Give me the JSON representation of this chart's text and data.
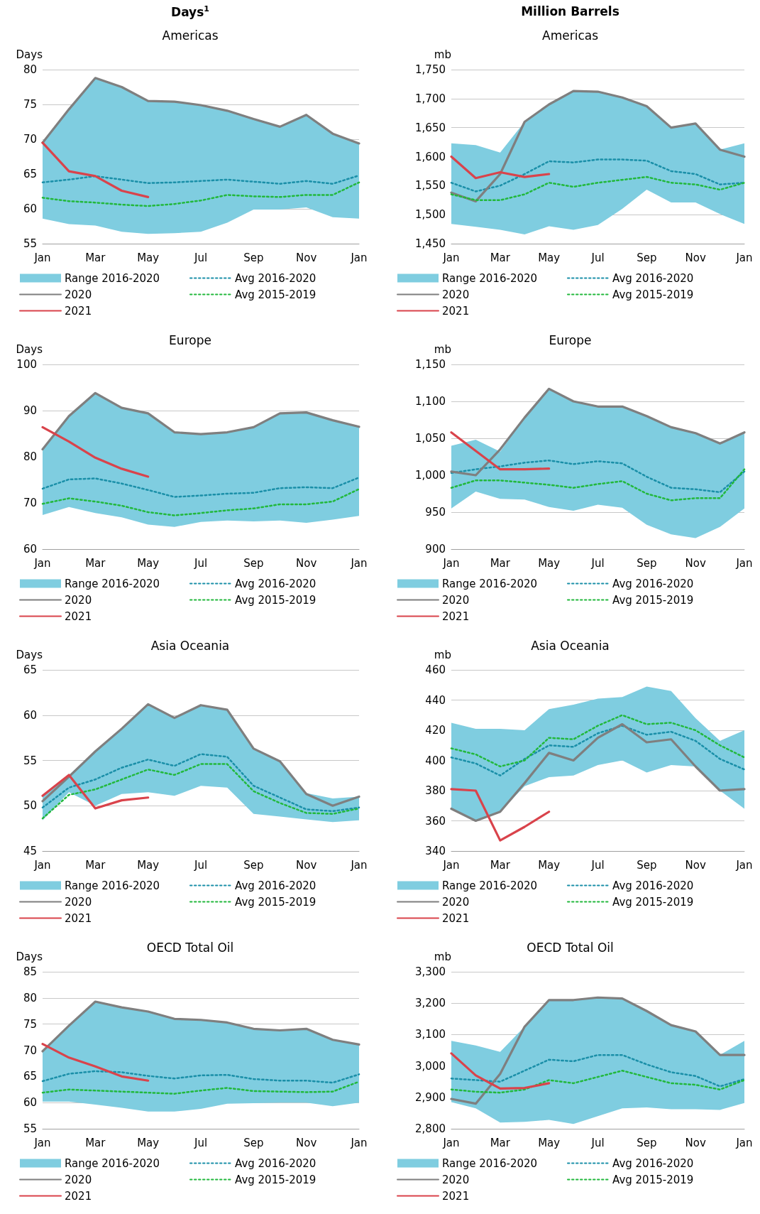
{
  "chart_data": [
    {
      "type": "line",
      "title": "Days$^{1}$",
      "subtitle": "Americas",
      "ylabel": "Days",
      "categories": [
        "Jan",
        null,
        "Mar",
        null,
        "May",
        null,
        "Jul",
        null,
        "Sep",
        null,
        "Nov",
        null,
        "Jan"
      ],
      "ylim": [
        55,
        80
      ],
      "yticks": [
        55,
        60,
        65,
        70,
        75,
        80
      ],
      "grid": "y",
      "legend": "bottom",
      "marker": "none",
      "series": [
        {
          "name": "Range 2016-2020",
          "type": "area",
          "color": "#7fcde0",
          "values": [
            null,
            null,
            null,
            null,
            null,
            null,
            null,
            null,
            null,
            null,
            null,
            null,
            null
          ],
          "upper": [
            69.5,
            74.5,
            78.8,
            77.5,
            75.5,
            75.4,
            74.9,
            74.2,
            73,
            71.8,
            73.5,
            70.8,
            69.5
          ],
          "lower": [
            58.6,
            57.8,
            57.6,
            56.7,
            56.4,
            56.5,
            56.7,
            58,
            59.9,
            59.9,
            60.2,
            58.8,
            58.6
          ]
        },
        {
          "name": "Avg 2016-2020",
          "color": "#1a8fa8",
          "line_style": "dotted",
          "values": [
            63.8,
            64.2,
            64.7,
            64.2,
            63.7,
            63.8,
            64,
            64.2,
            63.9,
            63.6,
            64,
            63.6,
            64.8
          ]
        },
        {
          "name": "2020",
          "color": "#7f7f7f",
          "line_style": "solid",
          "values": [
            69.5,
            74.3,
            78.8,
            77.5,
            75.5,
            75.4,
            74.9,
            74.1,
            72.9,
            71.8,
            73.5,
            70.8,
            69.4
          ]
        },
        {
          "name": "Avg 2015-2019",
          "color": "#22b83c",
          "line_style": "dotted",
          "values": [
            61.6,
            61.1,
            60.9,
            60.6,
            60.4,
            60.7,
            61.2,
            62,
            61.8,
            61.7,
            62,
            62,
            63.8
          ]
        },
        {
          "name": "2021",
          "color": "#d9434b",
          "line_style": "solid",
          "values": [
            69.5,
            65.4,
            64.7,
            62.6,
            61.7,
            null,
            null,
            null,
            null,
            null,
            null,
            null,
            null
          ]
        }
      ]
    },
    {
      "type": "line",
      "title": "Million Barrels",
      "subtitle": "Americas",
      "ylabel": "mb",
      "categories": [
        "Jan",
        null,
        "Mar",
        null,
        "May",
        null,
        "Jul",
        null,
        "Sep",
        null,
        "Nov",
        null,
        "Jan"
      ],
      "ylim": [
        1450,
        1750
      ],
      "yticks": [
        {
          "value": 1450,
          "label": "1,450"
        },
        {
          "value": 1500,
          "label": "1,500"
        },
        {
          "value": 1550,
          "label": "1,550"
        },
        {
          "value": 1600,
          "label": "1,600"
        },
        {
          "value": 1650,
          "label": "1,650"
        },
        {
          "value": 1700,
          "label": "1,700"
        },
        {
          "value": 1750,
          "label": "1,750"
        }
      ],
      "grid": "y",
      "legend": "bottom",
      "marker": "none",
      "series": [
        {
          "name": "Range 2016-2020",
          "type": "area",
          "color": "#7fcde0",
          "values": [
            null,
            null,
            null,
            null,
            null,
            null,
            null,
            null,
            null,
            null,
            null,
            null,
            null
          ],
          "upper": [
            1623,
            1620,
            1607,
            1660,
            1690,
            1713,
            1712,
            1702,
            1687,
            1650,
            1657,
            1612,
            1623
          ],
          "lower": [
            1484,
            1479,
            1474,
            1466,
            1480,
            1474,
            1482,
            1510,
            1543,
            1521,
            1521,
            1501,
            1484
          ]
        },
        {
          "name": "Avg 2016-2020",
          "color": "#1a8fa8",
          "line_style": "dotted",
          "values": [
            1555,
            1540,
            1550,
            1570,
            1592,
            1590,
            1595,
            1595,
            1593,
            1575,
            1570,
            1552,
            1555
          ]
        },
        {
          "name": "2020",
          "color": "#7f7f7f",
          "line_style": "solid",
          "values": [
            1538,
            1523,
            1570,
            1660,
            1690,
            1713,
            1712,
            1702,
            1687,
            1650,
            1657,
            1612,
            1600
          ]
        },
        {
          "name": "Avg 2015-2019",
          "color": "#22b83c",
          "line_style": "dotted",
          "values": [
            1535,
            1525,
            1525,
            1535,
            1555,
            1548,
            1555,
            1560,
            1565,
            1555,
            1552,
            1543,
            1555
          ]
        },
        {
          "name": "2021",
          "color": "#d9434b",
          "line_style": "solid",
          "values": [
            1600,
            1563,
            1573,
            1565,
            1570,
            null,
            null,
            null,
            null,
            null,
            null,
            null,
            null
          ]
        }
      ]
    },
    {
      "type": "line",
      "title": "Europe",
      "ylabel": "Days",
      "categories": [
        "Jan",
        null,
        "Mar",
        null,
        "May",
        null,
        "Jul",
        null,
        "Sep",
        null,
        "Nov",
        null,
        "Jan"
      ],
      "ylim": [
        60,
        100
      ],
      "yticks": [
        60,
        70,
        80,
        90,
        100
      ],
      "grid": "y",
      "legend": "bottom",
      "marker": "none",
      "series": [
        {
          "name": "Range 2016-2020",
          "type": "area",
          "color": "#7fcde0",
          "values": [
            null,
            null,
            null,
            null,
            null,
            null,
            null,
            null,
            null,
            null,
            null,
            null,
            null
          ],
          "upper": [
            81.6,
            88.8,
            93.8,
            90.6,
            89.4,
            85.3,
            84.9,
            85.3,
            86.4,
            89.4,
            89.6,
            87.9,
            86.5
          ],
          "lower": [
            67.4,
            69.1,
            67.8,
            66.9,
            65.3,
            64.8,
            65.9,
            66.2,
            66,
            66.2,
            65.7,
            66.4,
            67.2
          ]
        },
        {
          "name": "Avg 2016-2020",
          "color": "#1a8fa8",
          "line_style": "dotted",
          "values": [
            73.1,
            75.1,
            75.3,
            74.2,
            72.8,
            71.3,
            71.6,
            72,
            72.2,
            73.2,
            73.4,
            73.2,
            75.5
          ]
        },
        {
          "name": "2020",
          "color": "#7f7f7f",
          "line_style": "solid",
          "values": [
            81.6,
            88.8,
            93.8,
            90.6,
            89.4,
            85.3,
            84.9,
            85.3,
            86.4,
            89.4,
            89.6,
            87.9,
            86.5
          ]
        },
        {
          "name": "Avg 2015-2019",
          "color": "#22b83c",
          "line_style": "dotted",
          "values": [
            69.8,
            71,
            70.3,
            69.4,
            68,
            67.3,
            67.8,
            68.4,
            68.8,
            69.7,
            69.7,
            70.3,
            73
          ]
        },
        {
          "name": "2021",
          "color": "#d9434b",
          "line_style": "solid",
          "values": [
            86.4,
            83.3,
            79.8,
            77.4,
            75.7,
            null,
            null,
            null,
            null,
            null,
            null,
            null,
            null
          ]
        }
      ]
    },
    {
      "type": "line",
      "title": "Europe",
      "ylabel": "mb",
      "categories": [
        "Jan",
        null,
        "Mar",
        null,
        "May",
        null,
        "Jul",
        null,
        "Sep",
        null,
        "Nov",
        null,
        "Jan"
      ],
      "ylim": [
        900,
        1150
      ],
      "yticks": [
        900,
        950,
        {
          "value": 1000,
          "label": "1,000"
        },
        {
          "value": 1050,
          "label": "1,050"
        },
        {
          "value": 1100,
          "label": "1,100"
        },
        {
          "value": 1150,
          "label": "1,150"
        }
      ],
      "grid": "y",
      "legend": "bottom",
      "marker": "none",
      "series": [
        {
          "name": "Range 2016-2020",
          "type": "area",
          "color": "#7fcde0",
          "values": [
            null,
            null,
            null,
            null,
            null,
            null,
            null,
            null,
            null,
            null,
            null,
            null,
            null
          ],
          "upper": [
            1040,
            1048,
            1032,
            1078,
            1117,
            1100,
            1093,
            1093,
            1080,
            1065,
            1057,
            1043,
            1058
          ],
          "lower": [
            955,
            978,
            968,
            967,
            957,
            952,
            960,
            956,
            933,
            920,
            915,
            930,
            955
          ]
        },
        {
          "name": "Avg 2016-2020",
          "color": "#1a8fa8",
          "line_style": "dotted",
          "values": [
            1003,
            1008,
            1012,
            1017,
            1020,
            1015,
            1019,
            1016,
            998,
            983,
            981,
            977,
            1005
          ]
        },
        {
          "name": "2020",
          "color": "#7f7f7f",
          "line_style": "solid",
          "values": [
            1005,
            1000,
            1035,
            1078,
            1117,
            1100,
            1093,
            1093,
            1080,
            1065,
            1057,
            1043,
            1058
          ]
        },
        {
          "name": "Avg 2015-2019",
          "color": "#22b83c",
          "line_style": "dotted",
          "values": [
            983,
            993,
            993,
            990,
            987,
            983,
            988,
            992,
            975,
            966,
            969,
            969,
            1008
          ]
        },
        {
          "name": "2021",
          "color": "#d9434b",
          "line_style": "solid",
          "values": [
            1058,
            1033,
            1008,
            1008,
            1009,
            null,
            null,
            null,
            null,
            null,
            null,
            null,
            null
          ]
        }
      ]
    },
    {
      "type": "line",
      "title": "Asia Oceania",
      "ylabel": "Days",
      "categories": [
        "Jan",
        null,
        "Mar",
        null,
        "May",
        null,
        "Jul",
        null,
        "Sep",
        null,
        "Nov",
        null,
        "Jan"
      ],
      "ylim": [
        45,
        65
      ],
      "yticks": [
        45,
        50,
        55,
        60,
        65
      ],
      "grid": "y",
      "legend": "bottom",
      "marker": "none",
      "series": [
        {
          "name": "Range 2016-2020",
          "type": "area",
          "color": "#7fcde0",
          "values": [
            null,
            null,
            null,
            null,
            null,
            null,
            null,
            null,
            null,
            null,
            null,
            null,
            null
          ],
          "upper": [
            51,
            53.4,
            56,
            58.5,
            61.2,
            59.7,
            61.1,
            60.6,
            56.3,
            54.9,
            51.4,
            50.8,
            51
          ],
          "lower": [
            48.4,
            51.5,
            50,
            51.3,
            51.5,
            51.1,
            52.2,
            52,
            49.1,
            48.8,
            48.5,
            48.2,
            48.4
          ]
        },
        {
          "name": "Avg 2016-2020",
          "color": "#1a8fa8",
          "line_style": "dotted",
          "values": [
            49.8,
            52,
            52.9,
            54.2,
            55.1,
            54.4,
            55.7,
            55.4,
            52.2,
            50.9,
            49.6,
            49.4,
            49.8
          ]
        },
        {
          "name": "2020",
          "color": "#7f7f7f",
          "line_style": "solid",
          "values": [
            50.5,
            53.2,
            56,
            58.5,
            61.2,
            59.7,
            61.1,
            60.6,
            56.3,
            54.9,
            51.3,
            50,
            51
          ]
        },
        {
          "name": "Avg 2015-2019",
          "color": "#22b83c",
          "line_style": "dotted",
          "values": [
            48.6,
            51.2,
            51.8,
            52.9,
            54,
            53.4,
            54.6,
            54.6,
            51.6,
            50.3,
            49.2,
            49.1,
            49.7
          ]
        },
        {
          "name": "2021",
          "color": "#d9434b",
          "line_style": "solid",
          "values": [
            51.1,
            53.4,
            49.7,
            50.6,
            50.9,
            null,
            null,
            null,
            null,
            null,
            null,
            null,
            null
          ]
        }
      ]
    },
    {
      "type": "line",
      "title": "Asia Oceania",
      "ylabel": "mb",
      "categories": [
        "Jan",
        null,
        "Mar",
        null,
        "May",
        null,
        "Jul",
        null,
        "Sep",
        null,
        "Nov",
        null,
        "Jan"
      ],
      "ylim": [
        340,
        460
      ],
      "yticks": [
        340,
        360,
        380,
        400,
        420,
        440,
        460
      ],
      "grid": "y",
      "legend": "bottom",
      "marker": "none",
      "series": [
        {
          "name": "Range 2016-2020",
          "type": "area",
          "color": "#7fcde0",
          "values": [
            null,
            null,
            null,
            null,
            null,
            null,
            null,
            null,
            null,
            null,
            null,
            null,
            null
          ],
          "upper": [
            425,
            421,
            421,
            420,
            434,
            437,
            441,
            442,
            449,
            446,
            428,
            413,
            420
          ],
          "lower": [
            368,
            360,
            366,
            383,
            389,
            390,
            397,
            400,
            392,
            397,
            396,
            380,
            368
          ]
        },
        {
          "name": "Avg 2016-2020",
          "color": "#1a8fa8",
          "line_style": "dotted",
          "values": [
            402,
            398,
            390,
            401,
            410,
            409,
            418,
            423,
            417,
            419,
            413,
            401,
            394
          ]
        },
        {
          "name": "2020",
          "color": "#7f7f7f",
          "line_style": "solid",
          "values": [
            368,
            360,
            366,
            385,
            405,
            400,
            415,
            424,
            412,
            414,
            396,
            380,
            381
          ]
        },
        {
          "name": "Avg 2015-2019",
          "color": "#22b83c",
          "line_style": "dotted",
          "values": [
            408,
            404,
            396,
            400,
            415,
            414,
            423,
            430,
            424,
            425,
            420,
            410,
            402
          ]
        },
        {
          "name": "2021",
          "color": "#d9434b",
          "line_style": "solid",
          "values": [
            381,
            380,
            347,
            356,
            366,
            null,
            null,
            null,
            null,
            null,
            null,
            null,
            null
          ]
        }
      ]
    },
    {
      "type": "line",
      "title": "OECD Total Oil",
      "ylabel": "Days",
      "categories": [
        "Jan",
        null,
        "Mar",
        null,
        "May",
        null,
        "Jul",
        null,
        "Sep",
        null,
        "Nov",
        null,
        "Jan"
      ],
      "ylim": [
        55,
        85
      ],
      "yticks": [
        55,
        60,
        65,
        70,
        75,
        80,
        85
      ],
      "grid": "y",
      "legend": "bottom",
      "marker": "none",
      "series": [
        {
          "name": "Range 2016-2020",
          "type": "area",
          "color": "#7fcde0",
          "values": [
            null,
            null,
            null,
            null,
            null,
            null,
            null,
            null,
            null,
            null,
            null,
            null,
            null
          ],
          "upper": [
            69.8,
            74.7,
            79.3,
            78.2,
            77.4,
            76,
            75.8,
            75.3,
            74.1,
            73.8,
            74.1,
            72,
            71.1
          ],
          "lower": [
            60.2,
            60.2,
            59.6,
            59,
            58.3,
            58.3,
            58.8,
            59.8,
            59.9,
            60,
            60,
            59.3,
            60
          ]
        },
        {
          "name": "Avg 2016-2020",
          "color": "#1a8fa8",
          "line_style": "dotted",
          "values": [
            64.1,
            65.5,
            66,
            65.8,
            65.1,
            64.6,
            65.2,
            65.3,
            64.5,
            64.2,
            64.2,
            63.8,
            65.4
          ]
        },
        {
          "name": "2020",
          "color": "#7f7f7f",
          "line_style": "solid",
          "values": [
            69.8,
            74.7,
            79.3,
            78.2,
            77.4,
            76,
            75.8,
            75.3,
            74.1,
            73.8,
            74.1,
            72,
            71.1
          ]
        },
        {
          "name": "Avg 2015-2019",
          "color": "#22b83c",
          "line_style": "dotted",
          "values": [
            61.9,
            62.5,
            62.3,
            62.1,
            61.9,
            61.7,
            62.3,
            62.8,
            62.2,
            62.1,
            62,
            62.1,
            64
          ]
        },
        {
          "name": "2021",
          "color": "#d9434b",
          "line_style": "solid",
          "values": [
            71.2,
            68.6,
            66.9,
            65,
            64.2,
            null,
            null,
            null,
            null,
            null,
            null,
            null,
            null
          ]
        }
      ]
    },
    {
      "type": "line",
      "title": "OECD Total Oil",
      "ylabel": "mb",
      "categories": [
        "Jan",
        null,
        "Mar",
        null,
        "May",
        null,
        "Jul",
        null,
        "Sep",
        null,
        "Nov",
        null,
        "Jan"
      ],
      "ylim": [
        2800,
        3300
      ],
      "yticks": [
        {
          "value": 2800,
          "label": "2,800"
        },
        {
          "value": 2900,
          "label": "2,900"
        },
        {
          "value": 3000,
          "label": "3,000"
        },
        {
          "value": 3100,
          "label": "3,100"
        },
        {
          "value": 3200,
          "label": "3,200"
        },
        {
          "value": 3300,
          "label": "3,300"
        }
      ],
      "grid": "y",
      "legend": "bottom",
      "marker": "none",
      "series": [
        {
          "name": "Range 2016-2020",
          "type": "area",
          "color": "#7fcde0",
          "values": [
            null,
            null,
            null,
            null,
            null,
            null,
            null,
            null,
            null,
            null,
            null,
            null,
            null
          ],
          "upper": [
            3080,
            3065,
            3045,
            3125,
            3210,
            3210,
            3218,
            3215,
            3175,
            3130,
            3110,
            3035,
            3080
          ],
          "lower": [
            2885,
            2865,
            2820,
            2822,
            2828,
            2815,
            2840,
            2865,
            2868,
            2862,
            2862,
            2860,
            2882
          ]
        },
        {
          "name": "Avg 2016-2020",
          "color": "#1a8fa8",
          "line_style": "dotted",
          "values": [
            2960,
            2955,
            2950,
            2985,
            3020,
            3015,
            3035,
            3035,
            3005,
            2980,
            2968,
            2935,
            2958
          ]
        },
        {
          "name": "2020",
          "color": "#7f7f7f",
          "line_style": "solid",
          "values": [
            2895,
            2880,
            2975,
            3125,
            3210,
            3210,
            3218,
            3215,
            3175,
            3130,
            3110,
            3035,
            3035
          ]
        },
        {
          "name": "Avg 2015-2019",
          "color": "#22b83c",
          "line_style": "dotted",
          "values": [
            2925,
            2918,
            2915,
            2925,
            2955,
            2945,
            2965,
            2985,
            2965,
            2945,
            2940,
            2925,
            2955
          ]
        },
        {
          "name": "2021",
          "color": "#d9434b",
          "line_style": "solid",
          "values": [
            3040,
            2970,
            2928,
            2930,
            2945,
            null,
            null,
            null,
            null,
            null,
            null,
            null,
            null
          ]
        }
      ]
    }
  ]
}
